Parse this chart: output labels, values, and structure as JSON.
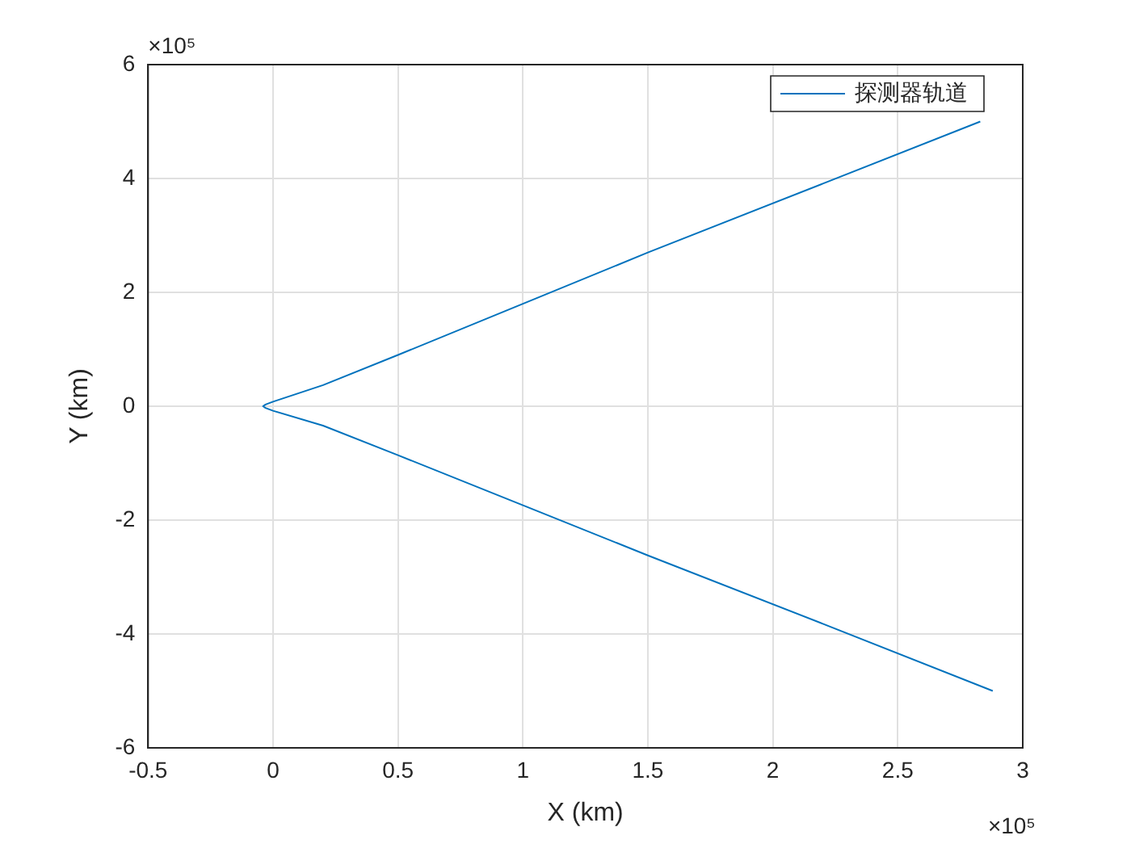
{
  "chart_data": {
    "type": "line",
    "xlabel": "X (km)",
    "ylabel": "Y (km)",
    "x": [
      2.88,
      2.2,
      1.5,
      1.0,
      0.5,
      0.2,
      0,
      -0.03,
      -0.04,
      -0.03,
      0,
      0.2,
      0.5,
      1.0,
      1.5,
      2.2,
      2.83
    ],
    "series": [
      {
        "name": "探测器轨道",
        "color": "#0072bd",
        "values": [
          -5.0,
          -3.82,
          -2.62,
          -1.74,
          -0.86,
          -0.34,
          -0.08,
          -0.03,
          0,
          0.03,
          0.08,
          0.37,
          0.9,
          1.8,
          2.7,
          3.91,
          5.0
        ]
      }
    ],
    "xlim": [
      -0.5,
      3
    ],
    "xticks": [
      -0.5,
      0,
      0.5,
      1,
      1.5,
      2,
      2.5,
      3
    ],
    "ylim": [
      -6,
      6
    ],
    "yticks": [
      -6,
      -4,
      -2,
      0,
      2,
      4,
      6
    ],
    "annotations": [
      "×10⁵",
      "×10⁵"
    ],
    "grid": true,
    "legend": "top right",
    "marker": "none",
    "line_style": "solid"
  }
}
